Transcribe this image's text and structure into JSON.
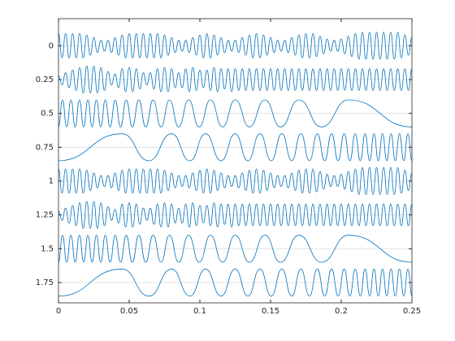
{
  "chart_data": {
    "type": "line",
    "xlim": [
      0,
      0.25
    ],
    "xticks": [
      0,
      0.05,
      0.1,
      0.15,
      0.2,
      0.25
    ],
    "ylim": [
      -0.2,
      1.9
    ],
    "yticks": [
      0,
      0.25,
      0.5,
      0.75,
      1,
      1.25,
      1.5,
      1.75
    ],
    "reverse_y": true,
    "ygrid": true,
    "x": [
      0,
      0.0025,
      0.005,
      0.0075,
      0.01,
      0.0125,
      0.015,
      0.0175,
      0.02,
      0.0225,
      0.025,
      0.0275,
      0.03,
      0.0325,
      0.035,
      0.0375,
      0.04,
      0.0425,
      0.045,
      0.0475,
      0.05,
      0.0525,
      0.055,
      0.0575,
      0.06,
      0.0625,
      0.065,
      0.0675,
      0.07,
      0.0725,
      0.075,
      0.0775,
      0.08,
      0.0825,
      0.085,
      0.0875,
      0.09,
      0.0925,
      0.095,
      0.0975,
      0.1,
      0.1025,
      0.105,
      0.1075,
      0.11,
      0.1125,
      0.115,
      0.1175,
      0.12,
      0.1225,
      0.125,
      0.1275,
      0.13,
      0.1325,
      0.135,
      0.1375,
      0.14,
      0.1425,
      0.145,
      0.1475,
      0.15,
      0.1525,
      0.155,
      0.1575,
      0.16,
      0.1625,
      0.165,
      0.1675,
      0.17,
      0.1725,
      0.175,
      0.1775,
      0.18,
      0.1825,
      0.185,
      0.1875,
      0.19,
      0.1925,
      0.195,
      0.1975,
      0.2,
      0.2025,
      0.205,
      0.2075,
      0.21,
      0.2125,
      0.215,
      0.2175,
      0.22,
      0.2225,
      0.225,
      0.2275,
      0.23,
      0.2325,
      0.235,
      0.2375,
      0.24,
      0.2425,
      0.245,
      0.2475,
      0.25
    ],
    "series": [
      {
        "color": "#0072bd",
        "values": [
          -0.09,
          0.09,
          -0.09,
          0.09,
          -0.09,
          0.09,
          -0.09,
          0.09,
          -0.08,
          0.07,
          -0.06,
          0.05,
          -0.04,
          0.04,
          -0.04,
          0.05,
          -0.06,
          0.07,
          -0.08,
          0.09,
          -0.09,
          0.09,
          -0.09,
          0.09,
          -0.09,
          0.09,
          -0.09,
          0.09,
          -0.09,
          0.09,
          -0.08,
          0.07,
          -0.06,
          0.05,
          -0.04,
          0.04,
          -0.04,
          0.05,
          -0.06,
          0.07,
          -0.08,
          0.09,
          -0.09,
          0.09,
          -0.08,
          0.07,
          -0.06,
          0.05,
          -0.04,
          0.04,
          -0.04,
          0.05,
          -0.06,
          0.07,
          -0.08,
          0.09,
          -0.09,
          0.09,
          -0.08,
          0.07,
          -0.06,
          0.05,
          -0.04,
          0.04,
          -0.04,
          0.05,
          -0.06,
          0.07,
          -0.08,
          0.09,
          -0.09,
          0.09,
          -0.09,
          0.08,
          -0.07,
          0.06,
          -0.05,
          0.04,
          -0.04,
          0.04,
          -0.05,
          0.06,
          -0.07,
          0.08,
          -0.09,
          0.1,
          -0.1,
          0.1,
          -0.1,
          0.1,
          -0.1,
          0.1,
          -0.1,
          0.1,
          -0.1,
          0.1,
          -0.1,
          0.09,
          -0.08,
          0.07,
          -0.06
        ]
      },
      {
        "color": "#0072bd",
        "values": [
          0.22,
          0.29,
          0.2,
          0.31,
          0.18,
          0.33,
          0.16,
          0.35,
          0.15,
          0.35,
          0.15,
          0.35,
          0.16,
          0.33,
          0.19,
          0.29,
          0.21,
          0.31,
          0.17,
          0.34,
          0.16,
          0.34,
          0.17,
          0.32,
          0.2,
          0.29,
          0.2,
          0.32,
          0.17,
          0.34,
          0.16,
          0.34,
          0.17,
          0.31,
          0.2,
          0.31,
          0.17,
          0.34,
          0.16,
          0.33,
          0.18,
          0.31,
          0.18,
          0.33,
          0.16,
          0.34,
          0.17,
          0.32,
          0.17,
          0.34,
          0.17,
          0.33,
          0.17,
          0.33,
          0.17,
          0.33,
          0.17,
          0.33,
          0.17,
          0.33,
          0.17,
          0.33,
          0.17,
          0.33,
          0.17,
          0.33,
          0.17,
          0.33,
          0.17,
          0.33,
          0.17,
          0.33,
          0.17,
          0.33,
          0.17,
          0.33,
          0.17,
          0.33,
          0.17,
          0.33,
          0.17,
          0.33,
          0.17,
          0.33,
          0.17,
          0.33,
          0.17,
          0.33,
          0.17,
          0.33,
          0.17,
          0.33,
          0.17,
          0.33,
          0.17,
          0.33,
          0.17,
          0.33,
          0.17,
          0.33,
          0.17
        ]
      },
      {
        "color": "#0072bd",
        "x": [
          0,
          0.0028,
          0.0058,
          0.0088,
          0.0118,
          0.0148,
          0.0178,
          0.0208,
          0.0238,
          0.0268,
          0.0299,
          0.0331,
          0.0365,
          0.0401,
          0.0439,
          0.0479,
          0.0522,
          0.0568,
          0.0617,
          0.0669,
          0.0725,
          0.0785,
          0.085,
          0.092,
          0.0995,
          0.1075,
          0.116,
          0.125,
          0.135,
          0.146,
          0.157,
          0.17,
          0.186,
          0.205,
          0.25
        ],
        "values": [
          0.6,
          0.4,
          0.6,
          0.4,
          0.6,
          0.4,
          0.6,
          0.4,
          0.6,
          0.4,
          0.6,
          0.4,
          0.6,
          0.4,
          0.6,
          0.4,
          0.6,
          0.4,
          0.6,
          0.4,
          0.6,
          0.4,
          0.6,
          0.4,
          0.6,
          0.4,
          0.6,
          0.4,
          0.6,
          0.4,
          0.6,
          0.4,
          0.6,
          0.4,
          0.6
        ]
      },
      {
        "color": "#0072bd",
        "x": [
          0,
          0.045,
          0.064,
          0.08,
          0.093,
          0.104,
          0.115,
          0.125,
          0.134,
          0.1425,
          0.1505,
          0.158,
          0.165,
          0.1715,
          0.1775,
          0.1831,
          0.1883,
          0.1932,
          0.1978,
          0.2021,
          0.2061,
          0.2099,
          0.2135,
          0.2169,
          0.2201,
          0.2232,
          0.2262,
          0.2292,
          0.2322,
          0.2352,
          0.2382,
          0.2412,
          0.2442,
          0.2472,
          0.25
        ],
        "values": [
          0.85,
          0.65,
          0.85,
          0.65,
          0.85,
          0.65,
          0.85,
          0.65,
          0.85,
          0.65,
          0.85,
          0.65,
          0.85,
          0.65,
          0.85,
          0.65,
          0.85,
          0.65,
          0.85,
          0.65,
          0.85,
          0.65,
          0.85,
          0.65,
          0.85,
          0.65,
          0.85,
          0.65,
          0.85,
          0.65,
          0.85,
          0.65,
          0.85,
          0.65,
          0.85
        ]
      },
      {
        "color": "#0072bd",
        "values": [
          0.91,
          1.09,
          0.91,
          1.09,
          0.91,
          1.09,
          0.91,
          1.09,
          0.92,
          1.07,
          0.94,
          1.05,
          0.96,
          1.04,
          0.96,
          1.05,
          0.94,
          1.07,
          0.92,
          1.09,
          0.91,
          1.09,
          0.91,
          1.09,
          0.91,
          1.09,
          0.91,
          1.09,
          0.91,
          1.09,
          0.92,
          1.07,
          0.94,
          1.05,
          0.96,
          1.04,
          0.96,
          1.05,
          0.94,
          1.07,
          0.92,
          1.09,
          0.91,
          1.09,
          0.92,
          1.07,
          0.94,
          1.05,
          0.96,
          1.04,
          0.96,
          1.05,
          0.94,
          1.07,
          0.92,
          1.09,
          0.91,
          1.09,
          0.92,
          1.07,
          0.94,
          1.05,
          0.96,
          1.04,
          0.96,
          1.05,
          0.94,
          1.07,
          0.92,
          1.09,
          0.91,
          1.09,
          0.91,
          1.08,
          0.93,
          1.06,
          0.95,
          1.04,
          0.96,
          1.04,
          0.95,
          1.06,
          0.93,
          1.08,
          0.91,
          1.1,
          0.9,
          1.1,
          0.9,
          1.1,
          0.9,
          1.1,
          0.9,
          1.1,
          0.9,
          1.1,
          0.9,
          1.09,
          0.92,
          1.07,
          0.94
        ]
      },
      {
        "color": "#0072bd",
        "values": [
          1.22,
          1.29,
          1.2,
          1.31,
          1.18,
          1.33,
          1.16,
          1.35,
          1.15,
          1.35,
          1.15,
          1.35,
          1.16,
          1.33,
          1.19,
          1.29,
          1.21,
          1.31,
          1.17,
          1.34,
          1.16,
          1.34,
          1.17,
          1.32,
          1.2,
          1.29,
          1.2,
          1.32,
          1.17,
          1.34,
          1.16,
          1.34,
          1.17,
          1.31,
          1.2,
          1.31,
          1.17,
          1.34,
          1.16,
          1.33,
          1.18,
          1.31,
          1.18,
          1.33,
          1.16,
          1.34,
          1.17,
          1.32,
          1.17,
          1.34,
          1.17,
          1.33,
          1.17,
          1.33,
          1.17,
          1.33,
          1.17,
          1.33,
          1.17,
          1.33,
          1.17,
          1.33,
          1.17,
          1.33,
          1.17,
          1.33,
          1.17,
          1.33,
          1.17,
          1.33,
          1.17,
          1.33,
          1.17,
          1.33,
          1.17,
          1.33,
          1.17,
          1.33,
          1.17,
          1.33,
          1.17,
          1.33,
          1.17,
          1.33,
          1.17,
          1.33,
          1.17,
          1.33,
          1.17,
          1.33,
          1.17,
          1.33,
          1.17,
          1.33,
          1.17,
          1.33,
          1.17,
          1.33,
          1.17,
          1.33,
          1.17
        ]
      },
      {
        "color": "#0072bd",
        "x": [
          0,
          0.0028,
          0.0058,
          0.0088,
          0.0118,
          0.0148,
          0.0178,
          0.0208,
          0.0238,
          0.0268,
          0.0299,
          0.0331,
          0.0365,
          0.0401,
          0.0439,
          0.0479,
          0.0522,
          0.0568,
          0.0617,
          0.0669,
          0.0725,
          0.0785,
          0.085,
          0.092,
          0.0995,
          0.1075,
          0.116,
          0.125,
          0.135,
          0.146,
          0.157,
          0.17,
          0.186,
          0.205,
          0.25
        ],
        "values": [
          1.6,
          1.4,
          1.6,
          1.4,
          1.6,
          1.4,
          1.6,
          1.4,
          1.6,
          1.4,
          1.6,
          1.4,
          1.6,
          1.4,
          1.6,
          1.4,
          1.6,
          1.4,
          1.6,
          1.4,
          1.6,
          1.4,
          1.6,
          1.4,
          1.6,
          1.4,
          1.6,
          1.4,
          1.6,
          1.4,
          1.6,
          1.4,
          1.6,
          1.4,
          1.6
        ]
      },
      {
        "color": "#0072bd",
        "x": [
          0,
          0.045,
          0.064,
          0.08,
          0.093,
          0.104,
          0.115,
          0.125,
          0.134,
          0.1425,
          0.1505,
          0.158,
          0.165,
          0.1715,
          0.1775,
          0.1831,
          0.1883,
          0.1932,
          0.1978,
          0.2021,
          0.2061,
          0.2099,
          0.2135,
          0.2169,
          0.2201,
          0.2232,
          0.2262,
          0.2292,
          0.2322,
          0.2352,
          0.2382,
          0.2412,
          0.2442,
          0.2472,
          0.25
        ],
        "values": [
          1.85,
          1.65,
          1.85,
          1.65,
          1.85,
          1.65,
          1.85,
          1.65,
          1.85,
          1.65,
          1.85,
          1.65,
          1.85,
          1.65,
          1.85,
          1.65,
          1.85,
          1.65,
          1.85,
          1.65,
          1.85,
          1.65,
          1.85,
          1.65,
          1.85,
          1.65,
          1.85,
          1.65,
          1.85,
          1.65,
          1.85,
          1.65,
          1.85,
          1.65,
          1.85
        ]
      }
    ]
  }
}
